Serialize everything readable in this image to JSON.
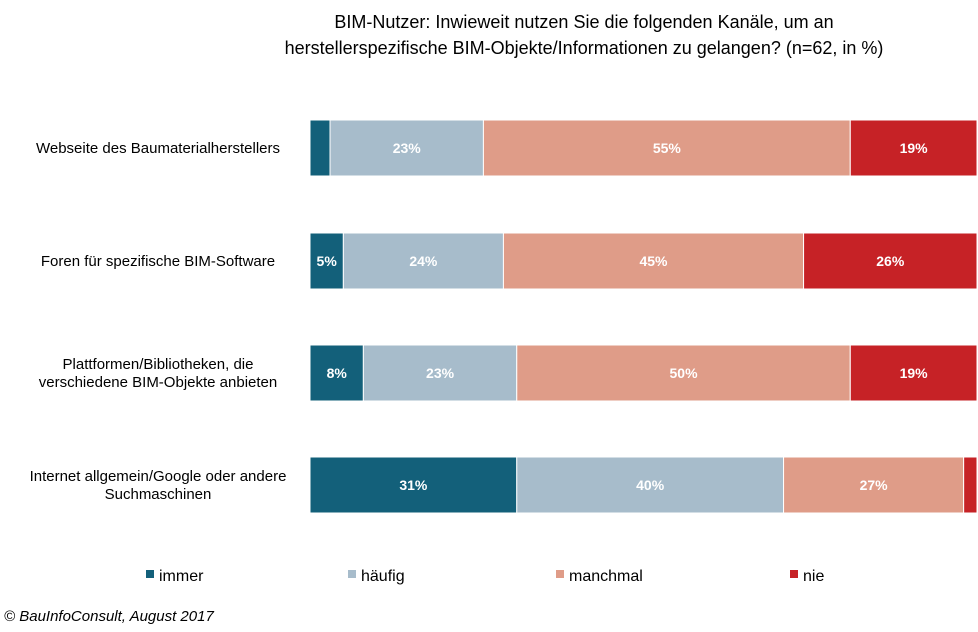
{
  "title": {
    "line1": "BIM-Nutzer:  Inwieweit nutzen Sie die folgenden Kanäle, um an",
    "line2": "herstellerspezifische  BIM-Objekte/Informationen  zu gelangen? (n=62, in %)"
  },
  "copyright": "© BauInfoConsult, August 2017",
  "colors": {
    "immer": "#13607a",
    "haeufig": "#a7bccb",
    "manchmal": "#df9c88",
    "nie": "#c62226"
  },
  "chart_data": {
    "type": "bar",
    "orientation": "horizontal",
    "stacked": true,
    "xlim": [
      0,
      100
    ],
    "grid": false,
    "legend_position": "bottom",
    "categories": [
      [
        "Webseite des Baumaterialherstellers"
      ],
      [
        "Foren für spezifische BIM-Software"
      ],
      [
        "Plattformen/Bibliotheken, die",
        "verschiedene BIM-Objekte anbieten"
      ],
      [
        "Internet allgemein/Google oder andere",
        "Suchmaschinen"
      ]
    ],
    "series": [
      {
        "name": "immer",
        "key": "immer",
        "values": [
          3,
          5,
          8,
          31
        ],
        "labels": [
          "",
          "5%",
          "8%",
          "31%"
        ]
      },
      {
        "name": "häufig",
        "key": "haeufig",
        "values": [
          23,
          24,
          23,
          40
        ],
        "labels": [
          "23%",
          "24%",
          "23%",
          "40%"
        ]
      },
      {
        "name": "manchmal",
        "key": "manchmal",
        "values": [
          55,
          45,
          50,
          27
        ],
        "labels": [
          "55%",
          "45%",
          "50%",
          "27%"
        ]
      },
      {
        "name": "nie",
        "key": "nie",
        "values": [
          19,
          26,
          19,
          2
        ],
        "labels": [
          "19%",
          "26%",
          "19%",
          ""
        ]
      }
    ]
  }
}
